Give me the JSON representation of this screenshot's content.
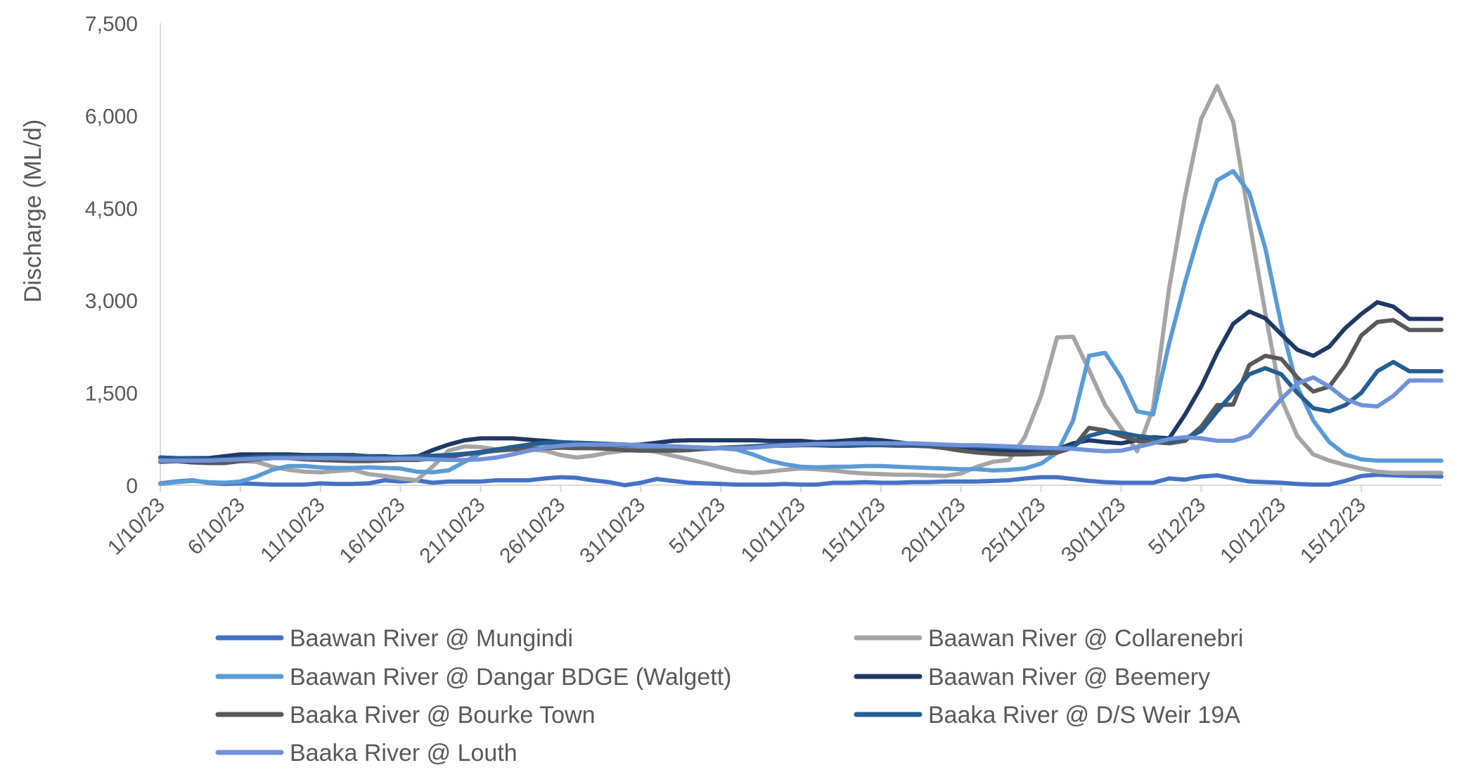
{
  "chart_data": {
    "type": "line",
    "title": "",
    "xlabel": "",
    "ylabel": "Discharge (ML/d)",
    "ylim": [
      0,
      7500
    ],
    "yticks": [
      0,
      1500,
      3000,
      4500,
      6000,
      7500
    ],
    "ytick_labels": [
      "0",
      "1,500",
      "3,000",
      "4,500",
      "6,000",
      "7,500"
    ],
    "grid": false,
    "legend_position": "bottom",
    "x": [
      "1/10/23",
      "2/10/23",
      "3/10/23",
      "4/10/23",
      "5/10/23",
      "6/10/23",
      "7/10/23",
      "8/10/23",
      "9/10/23",
      "10/10/23",
      "11/10/23",
      "12/10/23",
      "13/10/23",
      "14/10/23",
      "15/10/23",
      "16/10/23",
      "17/10/23",
      "18/10/23",
      "19/10/23",
      "20/10/23",
      "21/10/23",
      "22/10/23",
      "23/10/23",
      "24/10/23",
      "25/10/23",
      "26/10/23",
      "27/10/23",
      "28/10/23",
      "29/10/23",
      "30/10/23",
      "31/10/23",
      "1/11/23",
      "2/11/23",
      "3/11/23",
      "4/11/23",
      "5/11/23",
      "6/11/23",
      "7/11/23",
      "8/11/23",
      "9/11/23",
      "10/11/23",
      "11/11/23",
      "12/11/23",
      "13/11/23",
      "14/11/23",
      "15/11/23",
      "16/11/23",
      "17/11/23",
      "18/11/23",
      "19/11/23",
      "20/11/23",
      "21/11/23",
      "22/11/23",
      "23/11/23",
      "24/11/23",
      "25/11/23",
      "26/11/23",
      "27/11/23",
      "28/11/23",
      "29/11/23",
      "30/11/23",
      "1/12/23",
      "2/12/23",
      "3/12/23",
      "4/12/23",
      "5/12/23",
      "6/12/23",
      "7/12/23",
      "8/12/23",
      "9/12/23",
      "10/12/23",
      "11/12/23",
      "12/12/23",
      "13/12/23",
      "14/12/23",
      "15/12/23",
      "16/12/23",
      "17/12/23",
      "18/12/23",
      "19/12/23",
      "20/12/23"
    ],
    "x_tick_labels": [
      "1/10/23",
      "6/10/23",
      "11/10/23",
      "16/10/23",
      "21/10/23",
      "26/10/23",
      "31/10/23",
      "5/11/23",
      "10/11/23",
      "15/11/23",
      "20/11/23",
      "25/11/23",
      "30/11/23",
      "5/12/23",
      "10/12/23",
      "15/12/23"
    ],
    "series": [
      {
        "name": "Baawan River @ Mungindi",
        "color": "#4472C4",
        "values": [
          30,
          60,
          80,
          40,
          20,
          30,
          20,
          10,
          10,
          10,
          30,
          20,
          20,
          30,
          80,
          60,
          80,
          40,
          60,
          60,
          60,
          80,
          80,
          80,
          110,
          130,
          120,
          80,
          50,
          0,
          40,
          100,
          70,
          40,
          30,
          20,
          10,
          10,
          10,
          20,
          10,
          10,
          40,
          40,
          50,
          40,
          40,
          50,
          50,
          60,
          60,
          60,
          70,
          80,
          110,
          130,
          130,
          100,
          70,
          50,
          40,
          40,
          40,
          110,
          90,
          140,
          160,
          110,
          60,
          50,
          40,
          20,
          10,
          10,
          70,
          150,
          170,
          160,
          150,
          150,
          140
        ]
      },
      {
        "name": "Baawan River @ Collarenebri",
        "color": "#A5A5A5",
        "values": [
          400,
          390,
          380,
          370,
          370,
          390,
          380,
          300,
          250,
          220,
          210,
          230,
          250,
          180,
          150,
          110,
          80,
          300,
          560,
          630,
          620,
          580,
          580,
          580,
          560,
          490,
          450,
          480,
          530,
          560,
          580,
          540,
          480,
          420,
          360,
          290,
          230,
          200,
          220,
          250,
          270,
          260,
          240,
          210,
          190,
          180,
          170,
          170,
          160,
          150,
          190,
          300,
          380,
          410,
          790,
          1450,
          2400,
          2410,
          1870,
          1300,
          930,
          550,
          1250,
          3200,
          4700,
          5950,
          6480,
          5900,
          4300,
          2800,
          1400,
          800,
          500,
          400,
          330,
          270,
          220,
          200,
          200,
          200,
          200
        ]
      },
      {
        "name": "Baawan River @ Dangar BDGE (Walgett)",
        "color": "#5B9BD5",
        "values": [
          20,
          50,
          70,
          50,
          40,
          60,
          140,
          250,
          310,
          310,
          290,
          280,
          280,
          290,
          280,
          270,
          220,
          210,
          240,
          380,
          520,
          580,
          620,
          650,
          680,
          690,
          690,
          680,
          660,
          640,
          610,
          590,
          580,
          580,
          590,
          600,
          580,
          500,
          400,
          340,
          300,
          290,
          300,
          300,
          310,
          310,
          300,
          290,
          280,
          270,
          260,
          260,
          240,
          250,
          270,
          350,
          530,
          1050,
          2100,
          2150,
          1750,
          1200,
          1150,
          2300,
          3300,
          4200,
          4950,
          5100,
          4750,
          3850,
          2600,
          1600,
          1050,
          700,
          500,
          420,
          400,
          400,
          400,
          400,
          400
        ]
      },
      {
        "name": "Baawan River @ Beemery",
        "color": "#1F3864",
        "values": [
          450,
          440,
          440,
          440,
          470,
          500,
          500,
          500,
          500,
          490,
          490,
          490,
          490,
          470,
          470,
          450,
          460,
          570,
          660,
          730,
          760,
          760,
          760,
          740,
          720,
          700,
          680,
          670,
          660,
          650,
          660,
          690,
          720,
          730,
          730,
          730,
          730,
          730,
          720,
          720,
          720,
          700,
          710,
          730,
          750,
          730,
          700,
          670,
          650,
          630,
          610,
          590,
          570,
          550,
          550,
          550,
          580,
          680,
          730,
          700,
          680,
          730,
          780,
          760,
          1150,
          1600,
          2150,
          2620,
          2820,
          2710,
          2450,
          2200,
          2100,
          2250,
          2550,
          2780,
          2970,
          2900,
          2700,
          2700,
          2700
        ]
      },
      {
        "name": "Baaka River @ Bourke Town",
        "color": "#595959",
        "values": [
          380,
          390,
          370,
          360,
          360,
          390,
          420,
          440,
          440,
          420,
          410,
          400,
          390,
          390,
          400,
          410,
          410,
          430,
          460,
          500,
          530,
          560,
          580,
          590,
          600,
          610,
          600,
          600,
          590,
          570,
          560,
          560,
          560,
          570,
          590,
          610,
          620,
          630,
          640,
          640,
          650,
          650,
          640,
          640,
          650,
          650,
          640,
          640,
          630,
          600,
          560,
          530,
          510,
          500,
          500,
          510,
          530,
          610,
          930,
          890,
          800,
          720,
          700,
          680,
          720,
          950,
          1300,
          1310,
          1950,
          2100,
          2050,
          1750,
          1520,
          1600,
          1950,
          2430,
          2650,
          2680,
          2520,
          2520,
          2520
        ]
      },
      {
        "name": "Baaka River @ D/S Weir 19A",
        "color": "#255E91",
        "values": [
          450,
          440,
          430,
          420,
          420,
          440,
          460,
          470,
          470,
          470,
          480,
          480,
          480,
          470,
          460,
          460,
          470,
          480,
          490,
          510,
          540,
          580,
          620,
          660,
          690,
          700,
          690,
          680,
          670,
          660,
          650,
          640,
          630,
          620,
          610,
          600,
          610,
          630,
          650,
          660,
          660,
          650,
          640,
          640,
          650,
          660,
          660,
          660,
          650,
          650,
          640,
          630,
          620,
          610,
          600,
          590,
          590,
          630,
          800,
          870,
          850,
          800,
          770,
          720,
          760,
          880,
          1200,
          1500,
          1800,
          1900,
          1800,
          1500,
          1250,
          1200,
          1300,
          1500,
          1850,
          2000,
          1850,
          1850,
          1850
        ]
      },
      {
        "name": "Baaka River @ Louth",
        "color": "#7092D9",
        "values": [
          400,
          400,
          400,
          400,
          410,
          420,
          430,
          440,
          440,
          440,
          440,
          440,
          430,
          430,
          430,
          430,
          430,
          420,
          410,
          410,
          420,
          450,
          500,
          560,
          610,
          640,
          660,
          660,
          660,
          660,
          650,
          640,
          630,
          620,
          610,
          600,
          600,
          610,
          630,
          650,
          660,
          670,
          670,
          680,
          680,
          680,
          680,
          680,
          670,
          660,
          650,
          650,
          640,
          630,
          620,
          610,
          600,
          590,
          570,
          550,
          560,
          620,
          680,
          750,
          780,
          760,
          720,
          720,
          800,
          1100,
          1400,
          1650,
          1750,
          1600,
          1400,
          1300,
          1280,
          1450,
          1700,
          1700,
          1700
        ]
      }
    ]
  }
}
